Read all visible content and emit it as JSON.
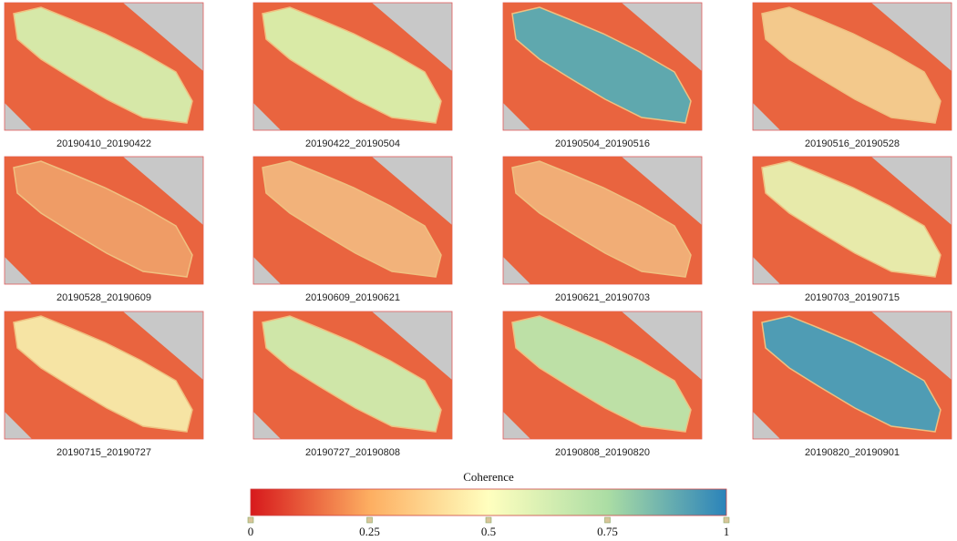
{
  "panels": [
    {
      "label": "20190410_20190422",
      "color": "#d6e8a8"
    },
    {
      "label": "20190422_20190504",
      "color": "#d9eaa6"
    },
    {
      "label": "20190504_20190516",
      "color": "#5fa8ae"
    },
    {
      "label": "20190516_20190528",
      "color": "#f3c98c"
    },
    {
      "label": "20190528_20190609",
      "color": "#ef9c66"
    },
    {
      "label": "20190609_20190621",
      "color": "#f2b27a"
    },
    {
      "label": "20190621_20190703",
      "color": "#f1ad76"
    },
    {
      "label": "20190703_20190715",
      "color": "#e7eaaa"
    },
    {
      "label": "20190715_20190727",
      "color": "#f6e4a4"
    },
    {
      "label": "20190727_20190808",
      "color": "#cfe6a8"
    },
    {
      "label": "20190808_20190820",
      "color": "#bde0a6"
    },
    {
      "label": "20190820_20190901",
      "color": "#4f9cb4"
    }
  ],
  "colorbar": {
    "title": "Coherence",
    "lim": [
      0,
      1
    ],
    "ticks": [
      0,
      0.25,
      0.5,
      0.75,
      1
    ],
    "colors": [
      "#d7191c",
      "#fdae61",
      "#ffffbf",
      "#abdda4",
      "#2b83ba"
    ]
  }
}
